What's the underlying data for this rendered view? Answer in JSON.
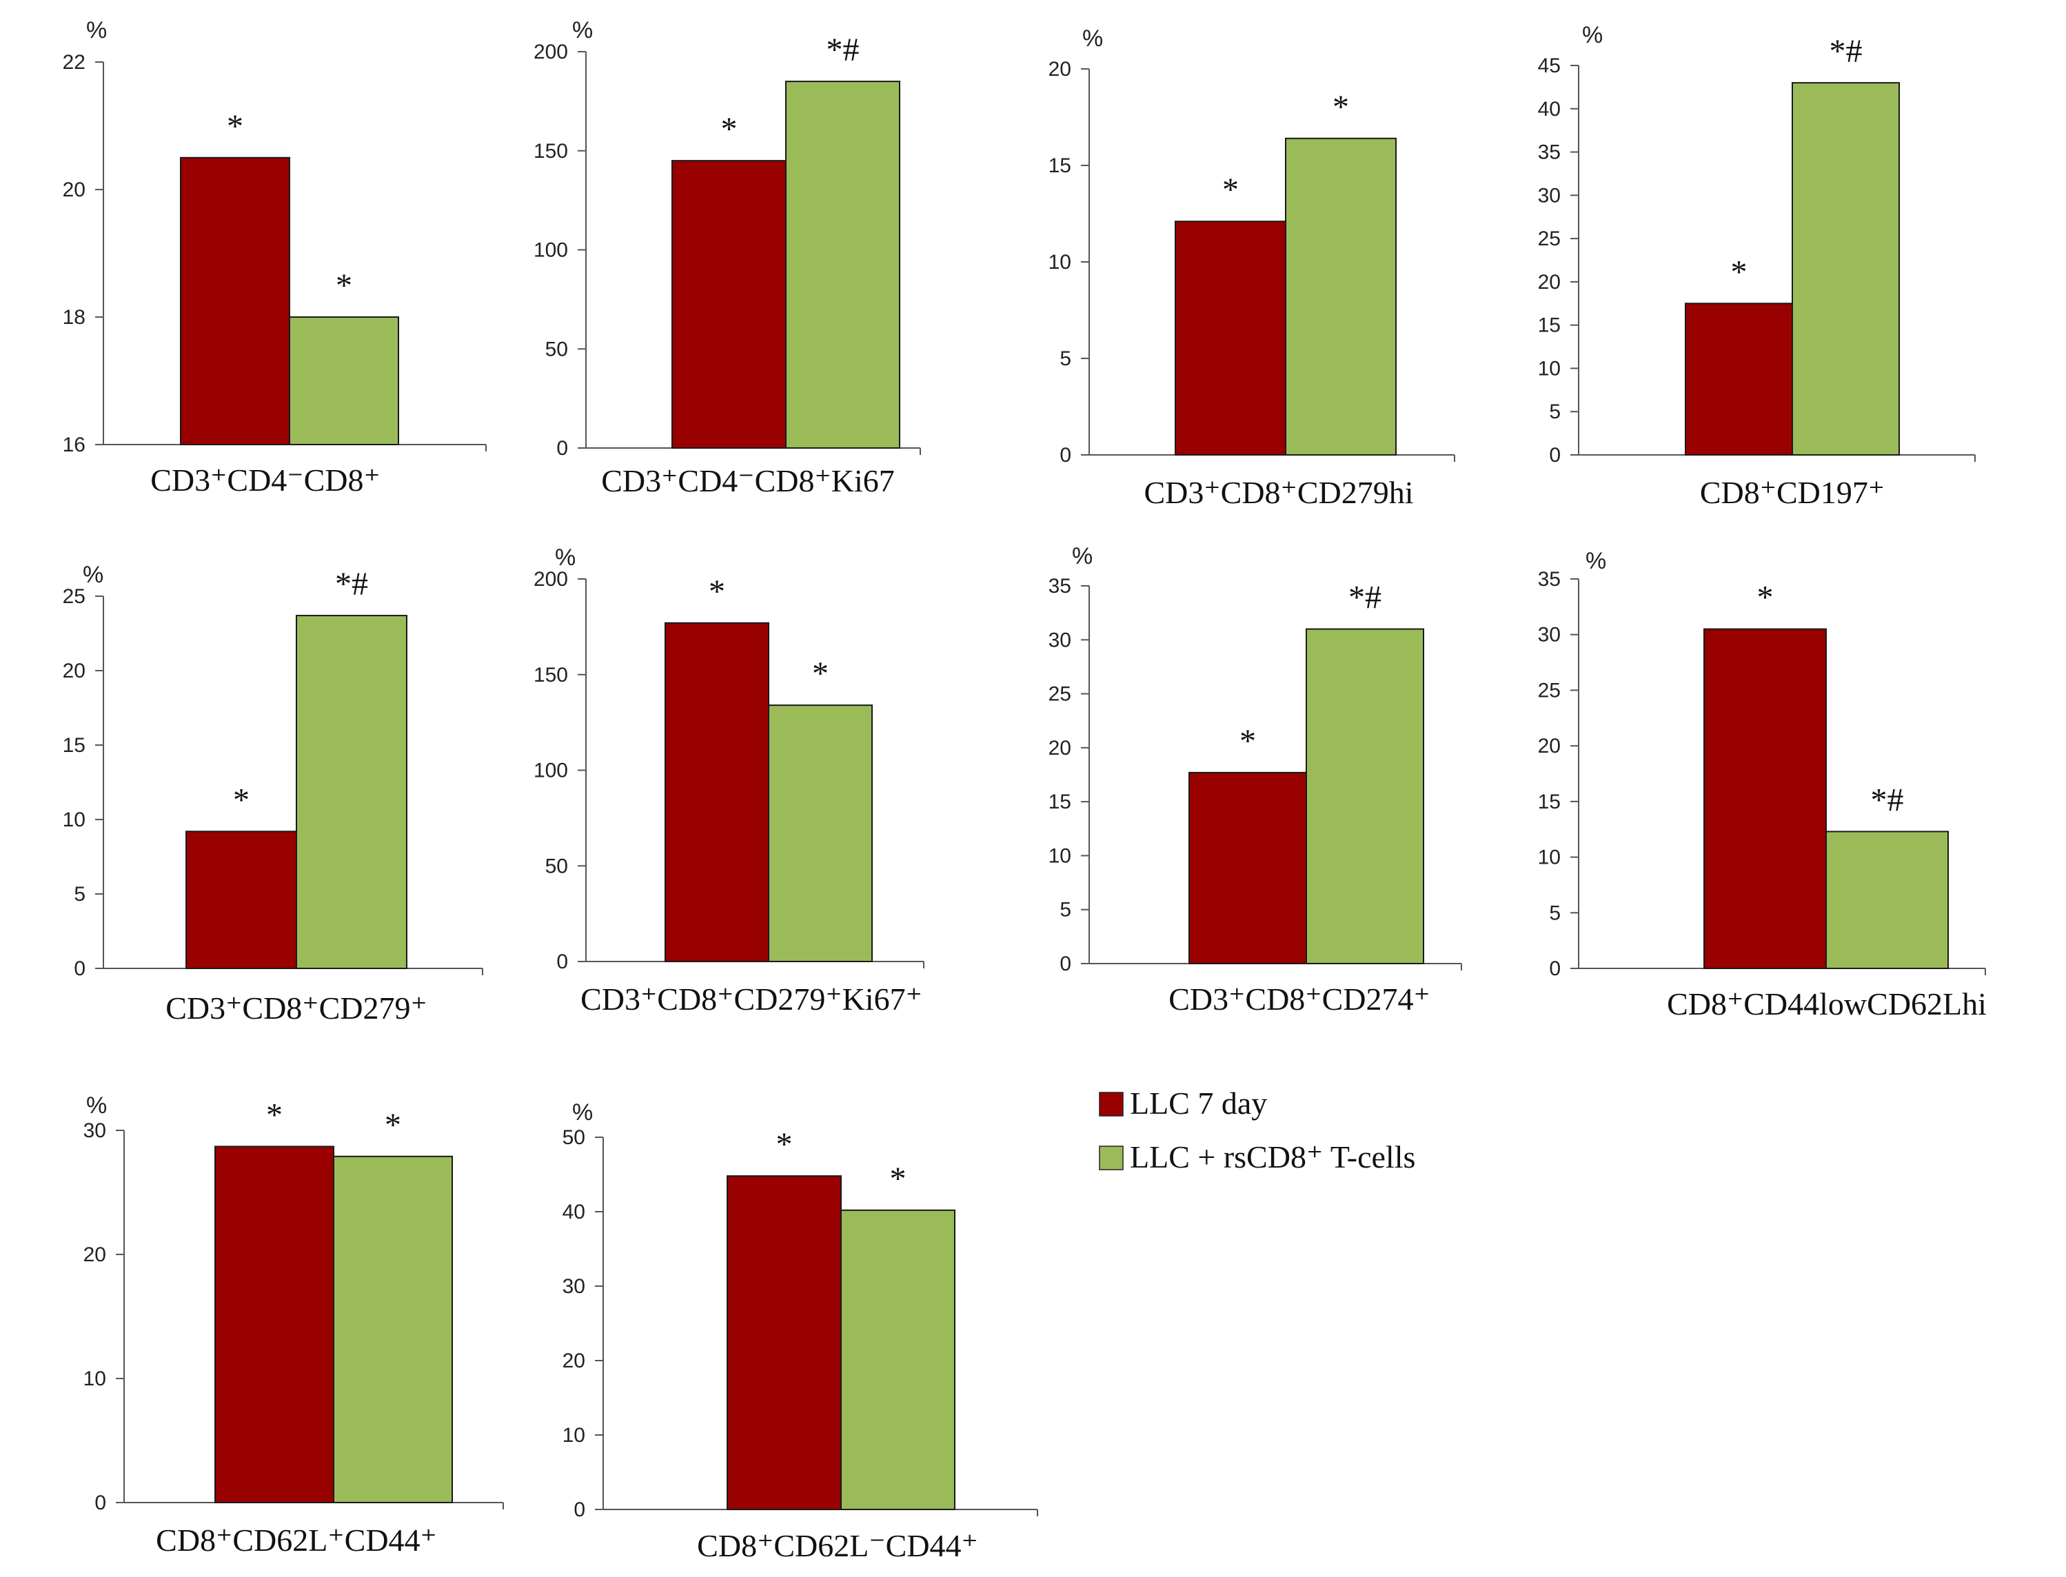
{
  "legend": {
    "items": [
      {
        "label": "LLC 7 day",
        "color": "#990000"
      },
      {
        "label": "LLC + rsCD8⁺ T-cells",
        "color": "#9bbb59"
      }
    ]
  },
  "chart_data": [
    {
      "type": "bar",
      "title": "CD3⁺CD4⁻CD8⁺",
      "xlabel": "CD3⁺CD4⁻CD8⁺",
      "ylabel": "%",
      "ylim": [
        16,
        22
      ],
      "yticks": [
        16,
        18,
        20,
        22
      ],
      "series": [
        {
          "name": "LLC 7 day",
          "values": [
            20.5
          ],
          "annotation": "*"
        },
        {
          "name": "LLC + rsCD8⁺ T-cells",
          "values": [
            18.0
          ],
          "annotation": "*"
        }
      ]
    },
    {
      "type": "bar",
      "title": "CD3⁺CD4⁻CD8⁺Ki67",
      "xlabel": "CD3⁺CD4⁻CD8⁺Ki67",
      "ylabel": "%",
      "ylim": [
        0,
        200
      ],
      "yticks": [
        0,
        50,
        100,
        150,
        200
      ],
      "series": [
        {
          "name": "LLC 7 day",
          "values": [
            145
          ],
          "annotation": "*"
        },
        {
          "name": "LLC + rsCD8⁺ T-cells",
          "values": [
            185
          ],
          "annotation": "*#"
        }
      ]
    },
    {
      "type": "bar",
      "title": "CD3⁺CD8⁺CD279hi",
      "xlabel": "CD3⁺CD8⁺CD279hi",
      "ylabel": "%",
      "ylim": [
        0,
        20
      ],
      "yticks": [
        0,
        5,
        10,
        15,
        20
      ],
      "series": [
        {
          "name": "LLC 7 day",
          "values": [
            12.1
          ],
          "annotation": "*"
        },
        {
          "name": "LLC + rsCD8⁺ T-cells",
          "values": [
            16.4
          ],
          "annotation": "*"
        }
      ]
    },
    {
      "type": "bar",
      "title": "CD8⁺CD197⁺",
      "xlabel": "CD8⁺CD197⁺",
      "ylabel": "%",
      "ylim": [
        0,
        45
      ],
      "yticks": [
        0,
        5,
        10,
        15,
        20,
        25,
        30,
        35,
        40,
        45
      ],
      "series": [
        {
          "name": "LLC 7 day",
          "values": [
            17.5
          ],
          "annotation": "*"
        },
        {
          "name": "LLC + rsCD8⁺ T-cells",
          "values": [
            43.0
          ],
          "annotation": "*#"
        }
      ]
    },
    {
      "type": "bar",
      "title": "CD3⁺CD8⁺CD279⁺",
      "xlabel": "CD3⁺CD8⁺CD279⁺",
      "ylabel": "%",
      "ylim": [
        0,
        25
      ],
      "yticks": [
        0,
        5,
        10,
        15,
        20,
        25
      ],
      "series": [
        {
          "name": "LLC 7 day",
          "values": [
            9.2
          ],
          "annotation": "*"
        },
        {
          "name": "LLC + rsCD8⁺ T-cells",
          "values": [
            23.7
          ],
          "annotation": "*#"
        }
      ]
    },
    {
      "type": "bar",
      "title": "CD3⁺CD8⁺CD279⁺Ki67⁺",
      "xlabel": "CD3⁺CD8⁺CD279⁺Ki67⁺",
      "ylabel": "%",
      "ylim": [
        0,
        200
      ],
      "yticks": [
        0,
        50,
        100,
        150,
        200
      ],
      "series": [
        {
          "name": "LLC 7 day",
          "values": [
            177
          ],
          "annotation": "*"
        },
        {
          "name": "LLC + rsCD8⁺ T-cells",
          "values": [
            134
          ],
          "annotation": "*"
        }
      ]
    },
    {
      "type": "bar",
      "title": "CD3⁺CD8⁺CD274⁺",
      "xlabel": "CD3⁺CD8⁺CD274⁺",
      "ylabel": "%",
      "ylim": [
        0,
        35
      ],
      "yticks": [
        0,
        5,
        10,
        15,
        20,
        25,
        30,
        35
      ],
      "series": [
        {
          "name": "LLC 7 day",
          "values": [
            17.7
          ],
          "annotation": "*"
        },
        {
          "name": "LLC + rsCD8⁺ T-cells",
          "values": [
            31.0
          ],
          "annotation": "*#"
        }
      ]
    },
    {
      "type": "bar",
      "title": "CD8⁺CD44lowCD62Lhi",
      "xlabel": "CD8⁺CD44lowCD62Lhi",
      "ylabel": "%",
      "ylim": [
        0,
        35
      ],
      "yticks": [
        0,
        5,
        10,
        15,
        20,
        25,
        30,
        35
      ],
      "series": [
        {
          "name": "LLC 7 day",
          "values": [
            30.5
          ],
          "annotation": "*"
        },
        {
          "name": "LLC + rsCD8⁺ T-cells",
          "values": [
            12.3
          ],
          "annotation": "*#"
        }
      ]
    },
    {
      "type": "bar",
      "title": "CD8⁺CD62L⁺CD44⁺",
      "xlabel": "CD8⁺CD62L⁺CD44⁺",
      "ylabel": "%",
      "ylim": [
        0,
        30
      ],
      "yticks": [
        0,
        10,
        20,
        30
      ],
      "series": [
        {
          "name": "LLC 7 day",
          "values": [
            28.7
          ],
          "annotation": "*"
        },
        {
          "name": "LLC + rsCD8⁺ T-cells",
          "values": [
            27.9
          ],
          "annotation": "*"
        }
      ]
    },
    {
      "type": "bar",
      "title": "CD8⁺CD62L⁻CD44⁺",
      "xlabel": "CD8⁺CD62L⁻CD44⁺",
      "ylabel": "%",
      "ylim": [
        0,
        50
      ],
      "yticks": [
        0,
        10,
        20,
        30,
        40,
        50
      ],
      "series": [
        {
          "name": "LLC 7 day",
          "values": [
            44.8
          ],
          "annotation": "*"
        },
        {
          "name": "LLC + rsCD8⁺ T-cells",
          "values": [
            40.2
          ],
          "annotation": "*"
        }
      ]
    }
  ]
}
